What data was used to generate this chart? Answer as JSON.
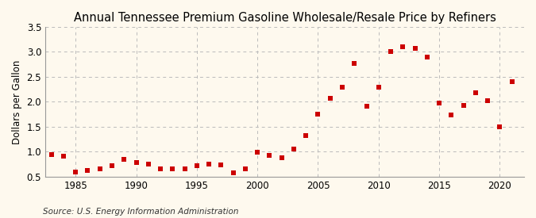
{
  "title": "Annual Tennessee Premium Gasoline Wholesale/Resale Price by Refiners",
  "ylabel": "Dollars per Gallon",
  "source": "Source: U.S. Energy Information Administration",
  "background_color": "#fef9ee",
  "marker_color": "#cc0000",
  "years": [
    1983,
    1984,
    1985,
    1986,
    1987,
    1988,
    1989,
    1990,
    1991,
    1992,
    1993,
    1994,
    1995,
    1996,
    1997,
    1998,
    1999,
    2000,
    2001,
    2002,
    2003,
    2004,
    2005,
    2006,
    2007,
    2008,
    2009,
    2010,
    2011,
    2012,
    2013,
    2014,
    2015,
    2016,
    2017,
    2018,
    2019,
    2020,
    2021
  ],
  "values": [
    0.95,
    0.91,
    0.59,
    0.63,
    0.65,
    0.72,
    0.85,
    0.78,
    0.75,
    0.66,
    0.65,
    0.65,
    0.72,
    0.75,
    0.73,
    0.58,
    0.65,
    0.99,
    0.93,
    0.88,
    1.05,
    1.32,
    1.75,
    2.07,
    2.3,
    2.77,
    1.91,
    2.3,
    3.0,
    3.1,
    3.07,
    2.9,
    1.97,
    1.73,
    1.93,
    2.18,
    2.03,
    1.5,
    2.4
  ],
  "xlim": [
    1982.5,
    2022
  ],
  "ylim": [
    0.5,
    3.5
  ],
  "yticks": [
    0.5,
    1.0,
    1.5,
    2.0,
    2.5,
    3.0,
    3.5
  ],
  "xticks": [
    1985,
    1990,
    1995,
    2000,
    2005,
    2010,
    2015,
    2020
  ],
  "grid_color": "#bbbbbb",
  "title_fontsize": 10.5,
  "label_fontsize": 8.5,
  "tick_fontsize": 8.5,
  "source_fontsize": 7.5,
  "marker_size": 14
}
